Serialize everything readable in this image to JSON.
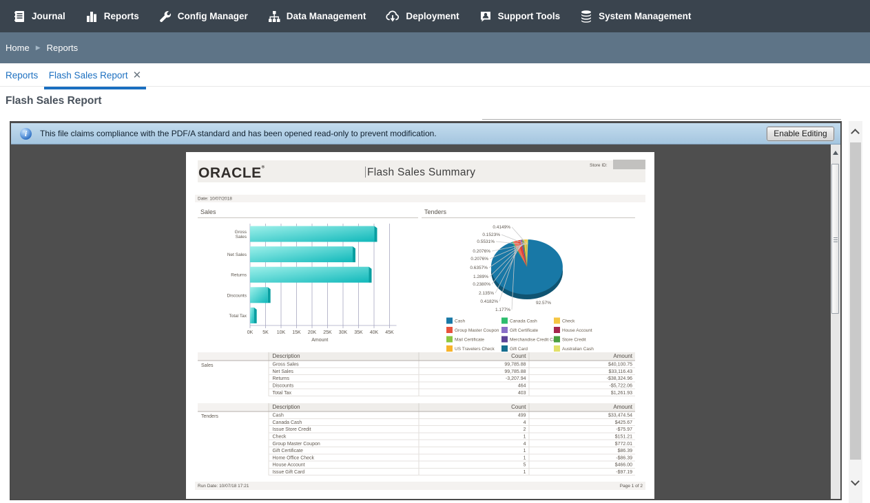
{
  "nav": {
    "items": [
      {
        "label": "Journal",
        "icon": "journal-icon"
      },
      {
        "label": "Reports",
        "icon": "reports-icon"
      },
      {
        "label": "Config Manager",
        "icon": "config-manager-icon"
      },
      {
        "label": "Data Management",
        "icon": "data-management-icon"
      },
      {
        "label": "Deployment",
        "icon": "deployment-icon"
      },
      {
        "label": "Support Tools",
        "icon": "support-tools-icon"
      },
      {
        "label": "System Management",
        "icon": "system-management-icon"
      }
    ]
  },
  "breadcrumb": {
    "home": "Home",
    "current": "Reports"
  },
  "tabs": {
    "first": "Reports",
    "second": "Flash Sales Report"
  },
  "page_title": "Flash Sales Report",
  "pdf_bar": {
    "message": "This file claims compliance with the PDF/A standard and has been opened read-only to prevent modification.",
    "button": "Enable Editing"
  },
  "report": {
    "logo": "ORACLE",
    "title": "Flash Sales Summary",
    "store_label": "Store ID:",
    "date": "Date: 10/07/2018",
    "run_date": "Run Date: 10/07/18 17:21",
    "page_num": "Page 1 of 2",
    "sales_section": "Sales",
    "tenders_section": "Tenders"
  },
  "chart_data": [
    {
      "type": "bar",
      "title": "Sales",
      "orientation": "horizontal",
      "categories": [
        "Gross Sales",
        "Net Sales",
        "Returns",
        "Discounts",
        "Total Tax"
      ],
      "values": [
        40100.75,
        33116.43,
        38324.96,
        5722.06,
        1261.93
      ],
      "xlabel": "Amount",
      "xticks": [
        "0K",
        "5K",
        "10K",
        "15K",
        "20K",
        "25K",
        "30K",
        "35K",
        "40K",
        "45K"
      ],
      "xlim": [
        0,
        45000
      ],
      "bar_color": "#1ec0c0"
    },
    {
      "type": "pie",
      "title": "Tenders",
      "big_label": "92.57%",
      "big_value": 92.57,
      "main_color": "#1878a6",
      "percent_labels": [
        "0.4149%",
        "0.1523%",
        "0.5531%",
        "0.2076%",
        "0.2076%",
        "0.6357%",
        "1.289%",
        "0.2380%",
        "2.135%",
        "0.4182%",
        "1.177%"
      ],
      "small_values": [
        0.5531,
        2.135,
        1.289,
        0.4182,
        0.238,
        0.2076,
        0.4149,
        0.2076,
        1.177,
        0.1523,
        0.6357
      ],
      "small_colors": [
        "#2dbd6e",
        "#ef6a55",
        "#e8402c",
        "#8a6fc8",
        "#5d4397",
        "#a5254d",
        "#8cc63f",
        "#176f8f",
        "#f5c643",
        "#f7b32b",
        "#e2e06a"
      ],
      "legend": [
        {
          "label": "Cash",
          "color": "#1878a6"
        },
        {
          "label": "Canada Cash",
          "color": "#2dbd6e"
        },
        {
          "label": "Check",
          "color": "#f5c643"
        },
        {
          "label": "Group Master Coupon",
          "color": "#e8523c"
        },
        {
          "label": "Gift Certificate",
          "color": "#8a6fc8"
        },
        {
          "label": "House Account",
          "color": "#a5254d"
        },
        {
          "label": "Mail Certificate",
          "color": "#8cc63f"
        },
        {
          "label": "Merchandise Credit Card",
          "color": "#5d4397"
        },
        {
          "label": "Store Credit",
          "color": "#4a9e3f"
        },
        {
          "label": "US Travelers Check",
          "color": "#f7b32b"
        },
        {
          "label": "Gift Card",
          "color": "#176f8f"
        },
        {
          "label": "Australian Cash",
          "color": "#e2e06a"
        }
      ]
    }
  ],
  "tables": {
    "headers": [
      "Description",
      "Count",
      "Amount"
    ],
    "sales": {
      "label": "Sales",
      "rows": [
        [
          "Gross Sales",
          "99,785.88",
          "$40,100.75"
        ],
        [
          "Net Sales",
          "99,785.88",
          "$33,116.43"
        ],
        [
          "Returns",
          "-3,207.94",
          "-$38,324.96"
        ],
        [
          "Discounts",
          "464",
          "-$5,722.06"
        ],
        [
          "Total Tax",
          "403",
          "$1,261.93"
        ]
      ]
    },
    "tenders": {
      "label": "Tenders",
      "rows": [
        [
          "Cash",
          "499",
          "$33,474.54"
        ],
        [
          "Canada Cash",
          "4",
          "$425.67"
        ],
        [
          "Issue Store Credit",
          "2",
          "-$75.97"
        ],
        [
          "Check",
          "1",
          "$151.21"
        ],
        [
          "Group Master Coupon",
          "4",
          "$772.01"
        ],
        [
          "Gift Certificate",
          "1",
          "$86.39"
        ],
        [
          "Home Office Check",
          "1",
          "-$86.39"
        ],
        [
          "House Account",
          "5",
          "$466.00"
        ],
        [
          "Issue Gift Card",
          "1",
          "-$97.19"
        ]
      ]
    }
  }
}
